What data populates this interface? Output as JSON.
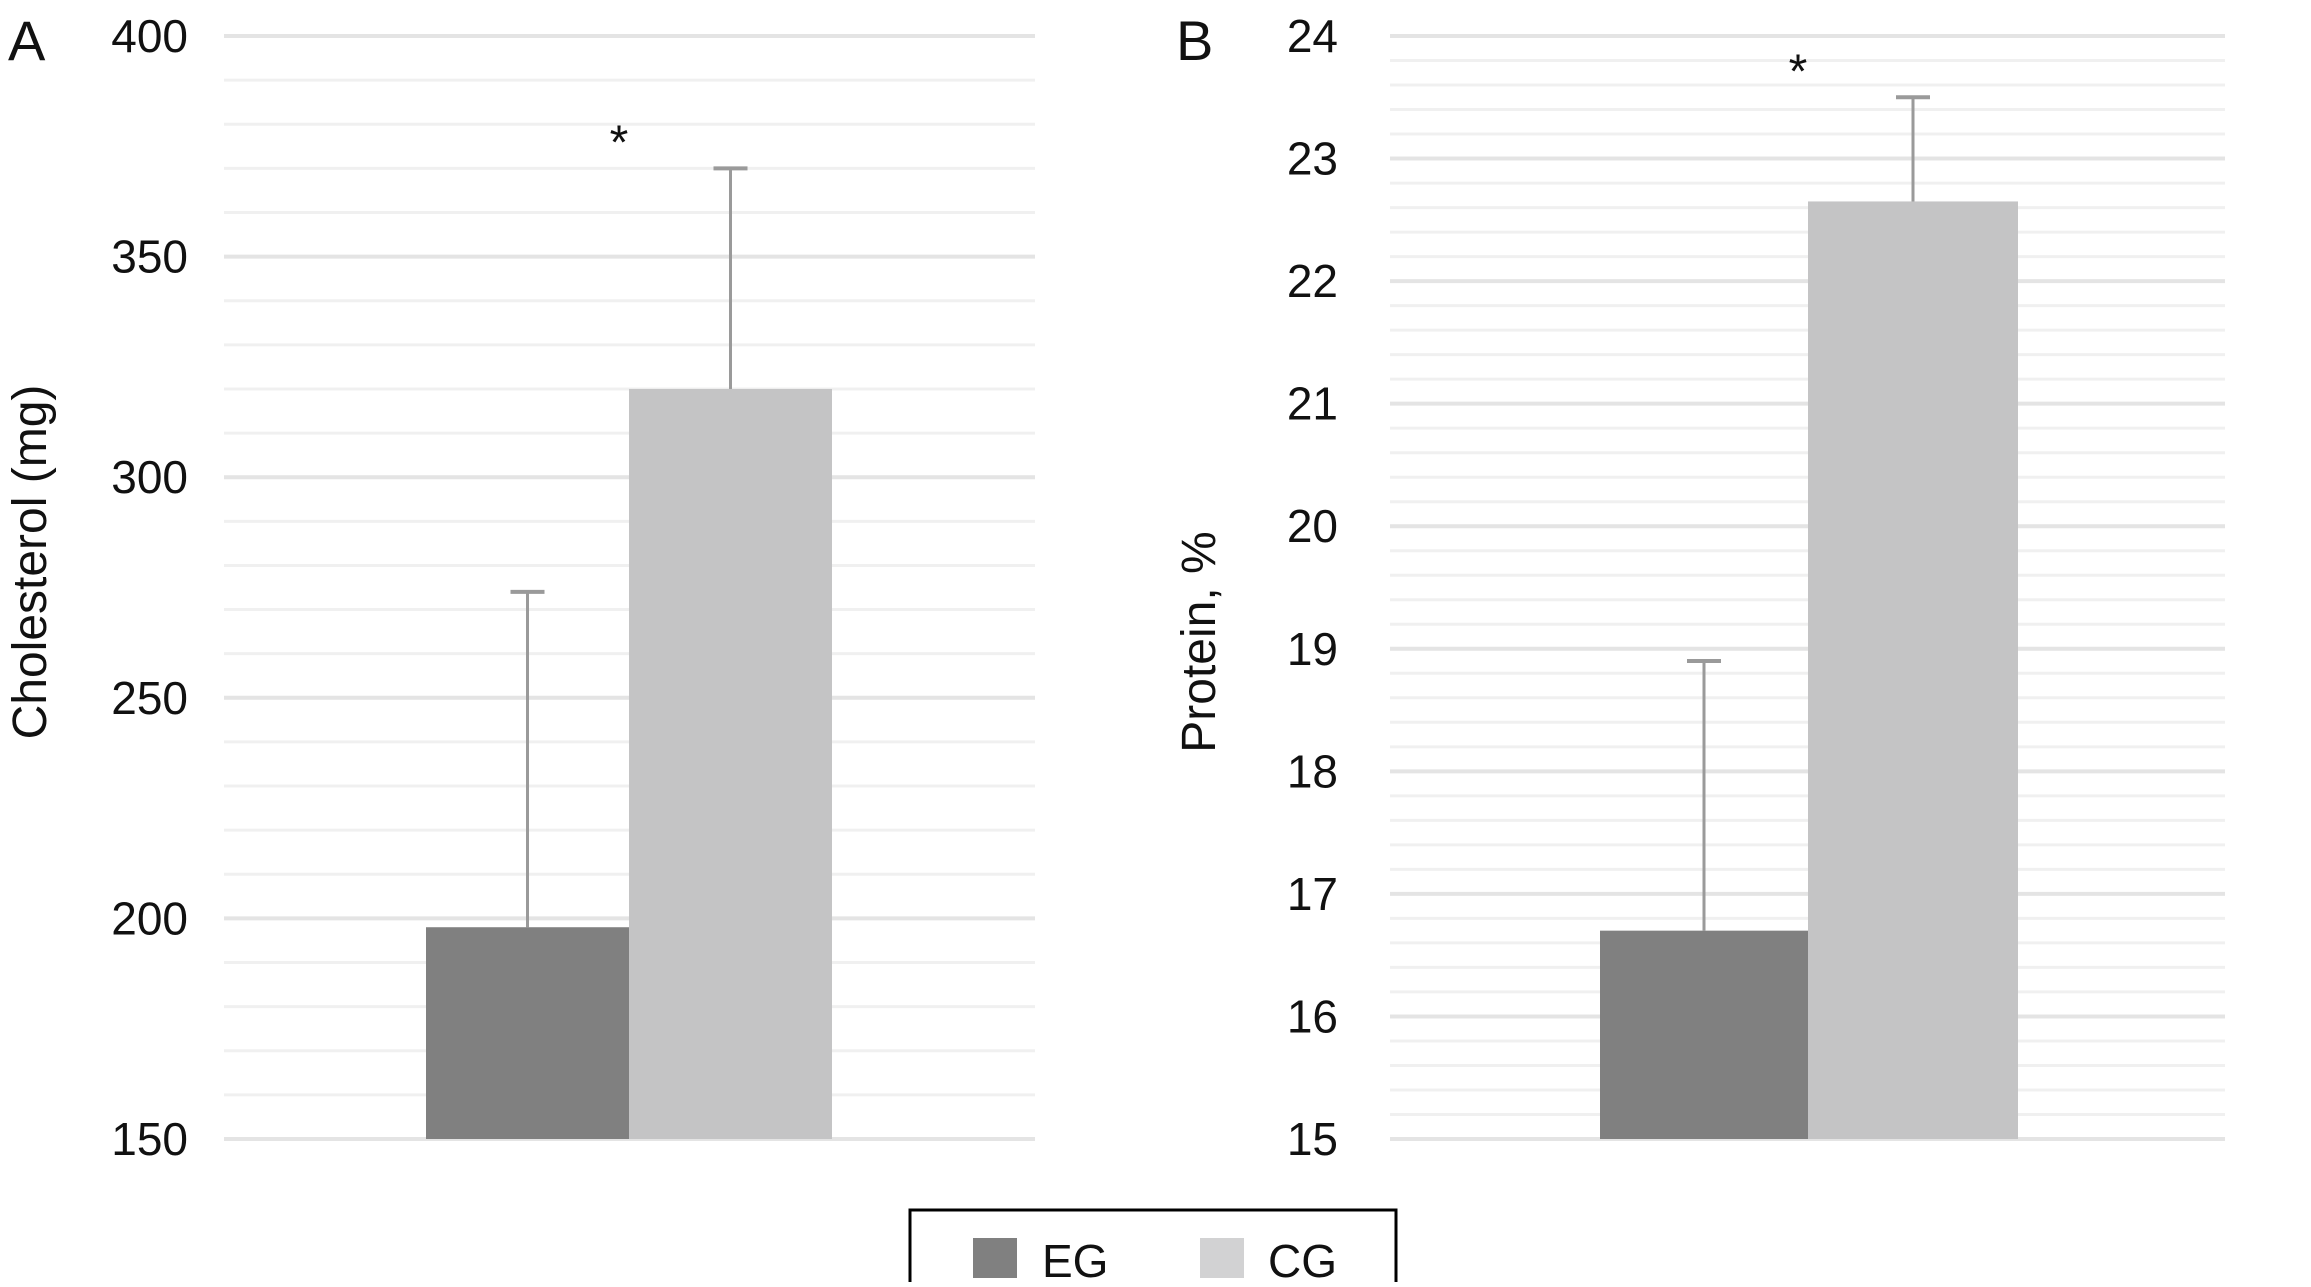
{
  "chart_data": [
    {
      "type": "bar",
      "panel_label": "A",
      "ylabel": "Cholesterol (mg)",
      "ylim": [
        150,
        400
      ],
      "yticks": [
        150,
        200,
        250,
        300,
        350,
        400
      ],
      "minor_grid_step": 10,
      "grid": true,
      "series": [
        {
          "name": "EG",
          "value": 198,
          "error_upper": 274
        },
        {
          "name": "CG",
          "value": 320,
          "error_upper": 370
        }
      ],
      "annotations": [
        {
          "text": "*",
          "over": "CG"
        }
      ]
    },
    {
      "type": "bar",
      "panel_label": "B",
      "ylabel": "Protein, %",
      "ylim": [
        15,
        24
      ],
      "yticks": [
        15,
        16,
        17,
        18,
        19,
        20,
        21,
        22,
        23,
        24
      ],
      "minor_grid_step": 0.2,
      "grid": true,
      "series": [
        {
          "name": "EG",
          "value": 16.7,
          "error_upper": 18.9
        },
        {
          "name": "CG",
          "value": 22.65,
          "error_upper": 23.5
        }
      ],
      "annotations": [
        {
          "text": "*",
          "over": "CG"
        }
      ]
    }
  ],
  "legend": {
    "position": "bottom-center",
    "items": [
      {
        "label": "EG",
        "color": "#808080"
      },
      {
        "label": "CG",
        "color": "#d2d2d3"
      }
    ]
  },
  "colors": {
    "EG": "#808080",
    "CG": "#c4c4c5",
    "error_bar": "#9a9a9a",
    "grid_major": "#e4e4e4",
    "grid_minor": "#f0f0f0"
  }
}
